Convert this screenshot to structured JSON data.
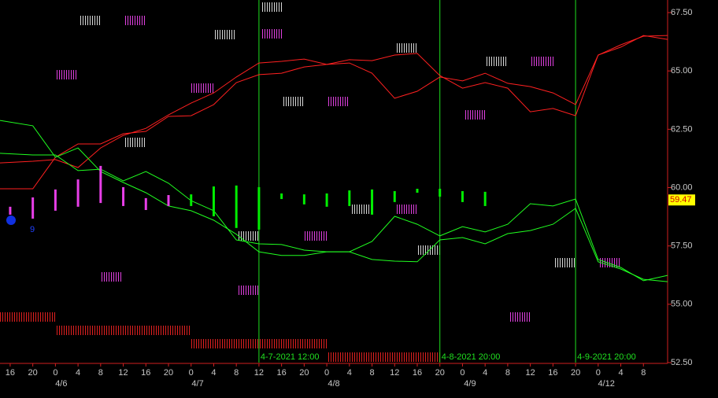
{
  "chart_data": {
    "type": "line",
    "xlim": [
      -0.45,
      29.07
    ],
    "ylim": [
      52.5,
      68.04
    ],
    "x": [
      -0.45,
      1,
      2,
      3,
      4,
      5,
      6,
      7,
      8,
      9,
      10,
      11,
      12,
      13,
      14,
      15,
      16,
      17,
      18,
      19,
      20,
      21,
      22,
      23,
      24,
      25,
      26,
      27,
      28,
      29.07
    ],
    "series": [
      {
        "color": "#ff2020",
        "values": [
          61.06,
          61.13,
          61.2,
          60.86,
          61.7,
          62.24,
          62.54,
          63.12,
          63.62,
          64.06,
          64.74,
          65.34,
          65.41,
          65.51,
          65.28,
          65.34,
          64.9,
          63.83,
          64.13,
          64.74,
          64.57,
          64.9,
          64.47,
          64.33,
          64.06,
          63.56,
          65.68,
          66.12,
          66.49,
          66.52
        ]
      },
      {
        "color": "#ff2020",
        "values": [
          59.95,
          59.95,
          61.3,
          61.87,
          61.87,
          62.31,
          62.41,
          63.05,
          63.08,
          63.56,
          64.5,
          64.84,
          64.9,
          65.17,
          65.28,
          65.48,
          65.44,
          65.68,
          65.75,
          64.8,
          64.26,
          64.5,
          64.26,
          63.25,
          63.39,
          63.08,
          65.68,
          66.02,
          66.52,
          66.35
        ]
      },
      {
        "color": "#20ff20",
        "values": [
          62.88,
          62.65,
          61.3,
          61.7,
          60.69,
          60.22,
          59.78,
          59.21,
          59.01,
          58.6,
          58.0,
          57.25,
          57.09,
          57.09,
          57.25,
          57.25,
          57.69,
          58.77,
          58.43,
          57.93,
          58.33,
          58.1,
          58.43,
          59.31,
          59.21,
          59.51,
          56.92,
          56.58,
          56.01,
          56.24
        ]
      },
      {
        "color": "#20ff20",
        "values": [
          61.47,
          61.4,
          61.4,
          60.73,
          60.79,
          60.29,
          60.69,
          60.19,
          59.44,
          59.01,
          57.76,
          57.59,
          57.56,
          57.32,
          57.25,
          57.25,
          56.92,
          56.85,
          56.82,
          57.76,
          57.86,
          57.59,
          58.03,
          58.16,
          58.43,
          59.11,
          56.82,
          56.51,
          56.07,
          55.97
        ]
      }
    ],
    "bars": [
      {
        "color": "#e83ee8",
        "x": [
          0,
          1,
          2,
          3,
          4,
          5,
          6,
          7
        ],
        "high": [
          59.18,
          59.58,
          59.92,
          60.35,
          60.93,
          60.02,
          59.55,
          59.68
        ],
        "low": [
          58.84,
          58.67,
          59.01,
          59.18,
          59.34,
          59.21,
          59.04,
          59.21
        ]
      },
      {
        "color": "#00ee00",
        "x": [
          8,
          9,
          10,
          11,
          12,
          13,
          14,
          15,
          16,
          17,
          18,
          19,
          20,
          21
        ],
        "high": [
          59.71,
          60.05,
          60.09,
          60.02,
          59.75,
          59.71,
          59.75,
          59.88,
          59.92,
          59.85,
          59.95,
          59.95,
          59.85,
          59.82
        ],
        "low": [
          59.21,
          58.77,
          58.27,
          58.2,
          59.51,
          59.28,
          59.18,
          59.21,
          58.84,
          59.38,
          59.78,
          59.61,
          59.38,
          59.21
        ]
      }
    ],
    "markers": [
      {
        "x": 11,
        "label": "4-7-2021 12:00"
      },
      {
        "x": 19,
        "label": "4-8-2021 20:00"
      },
      {
        "x": 25,
        "label": "4-9-2021 20:00"
      }
    ],
    "last_price": 59.47,
    "annotation": "9",
    "yticks": [
      {
        "value": 67.5,
        "label": "67.50"
      },
      {
        "value": 65,
        "label": "65.00"
      },
      {
        "value": 62.5,
        "label": "62.50"
      },
      {
        "value": 60,
        "label": "60.00"
      },
      {
        "value": 57.5,
        "label": "57.50"
      },
      {
        "value": 55,
        "label": "55.00"
      },
      {
        "value": 52.5,
        "label": "52.50"
      }
    ],
    "xticks": [
      {
        "value": 0,
        "label": "16"
      },
      {
        "value": 1,
        "label": "20"
      },
      {
        "value": 2,
        "label": "0"
      },
      {
        "value": 3,
        "label": "4"
      },
      {
        "value": 4,
        "label": "8"
      },
      {
        "value": 5,
        "label": "12"
      },
      {
        "value": 6,
        "label": "16"
      },
      {
        "value": 7,
        "label": "20"
      },
      {
        "value": 8,
        "label": "0"
      },
      {
        "value": 9,
        "label": "4"
      },
      {
        "value": 10,
        "label": "8"
      },
      {
        "value": 11,
        "label": "12"
      },
      {
        "value": 12,
        "label": "16"
      },
      {
        "value": 13,
        "label": "20"
      },
      {
        "value": 14,
        "label": "0"
      },
      {
        "value": 15,
        "label": "4"
      },
      {
        "value": 16,
        "label": "8"
      },
      {
        "value": 17,
        "label": "12"
      },
      {
        "value": 18,
        "label": "16"
      },
      {
        "value": 19,
        "label": "20"
      },
      {
        "value": 20,
        "label": "0"
      },
      {
        "value": 21,
        "label": "4"
      },
      {
        "value": 22,
        "label": "8"
      },
      {
        "value": 23,
        "label": "12"
      },
      {
        "value": 24,
        "label": "16"
      },
      {
        "value": 25,
        "label": "20"
      },
      {
        "value": 26,
        "label": "0"
      },
      {
        "value": 27,
        "label": "4"
      },
      {
        "value": 28,
        "label": "8"
      }
    ],
    "date_ticks": [
      {
        "value": 2.26,
        "label": "4/6"
      },
      {
        "value": 8.29,
        "label": "4/7"
      },
      {
        "value": 14.31,
        "label": "4/8"
      },
      {
        "value": 20.33,
        "label": "4/9"
      },
      {
        "value": 26.36,
        "label": "4/12"
      }
    ]
  }
}
